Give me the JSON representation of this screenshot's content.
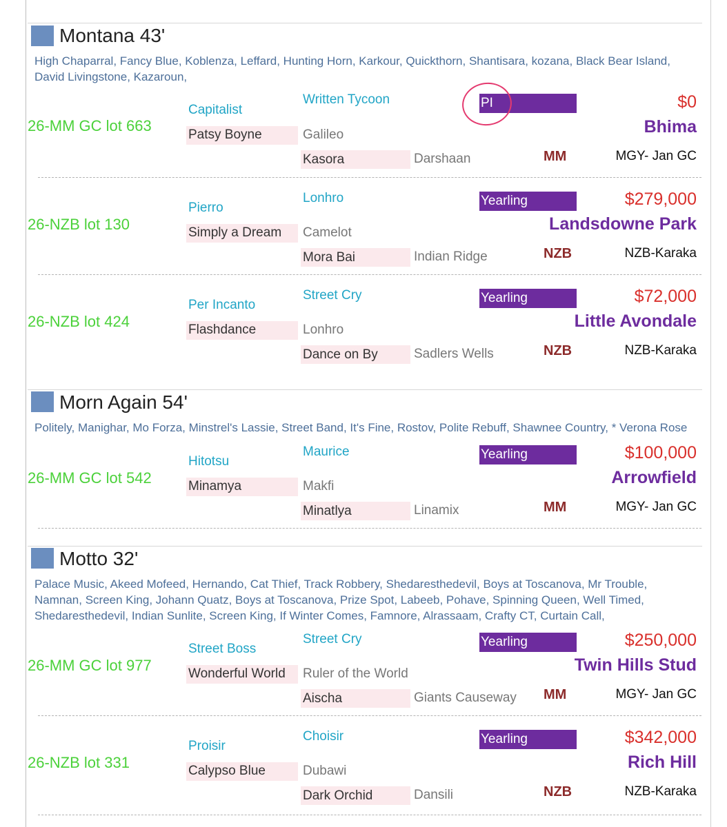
{
  "sections": [
    {
      "title": "Montana 43'",
      "progeny": "High Chaparral, Fancy Blue, Koblenza, Leffard, Hunting Horn, Karkour, Quickthorn, Shantisara, kozana, Black Bear Island, David Livingstone, Kazaroun,",
      "entries": [
        {
          "lot": "26-MM GC lot 663",
          "sire": "Capitalist",
          "dam": "Patsy Boyne",
          "grandsire": "Written Tycoon",
          "damsire": "Galileo",
          "granddam": "Kasora",
          "ggsire": "Darshaan",
          "badge": "PI",
          "price": "$0",
          "buyer": "Bhima",
          "sale_code": "MM",
          "sale_name": "MGY- Jan GC"
        },
        {
          "lot": "26-NZB lot 130",
          "sire": "Pierro",
          "dam": "Simply a Dream",
          "grandsire": "Lonhro",
          "damsire": "Camelot",
          "granddam": "Mora Bai",
          "ggsire": "Indian Ridge",
          "badge": "Yearling",
          "price": "$279,000",
          "buyer": "Landsdowne Park",
          "sale_code": "NZB",
          "sale_name": "NZB-Karaka"
        },
        {
          "lot": "26-NZB lot 424",
          "sire": "Per Incanto",
          "dam": "Flashdance",
          "grandsire": "Street Cry",
          "damsire": "Lonhro",
          "granddam": "Dance on By",
          "ggsire": "Sadlers Wells",
          "badge": "Yearling",
          "price": "$72,000",
          "buyer": "Little Avondale",
          "sale_code": "NZB",
          "sale_name": "NZB-Karaka"
        }
      ]
    },
    {
      "title": "Morn Again 54'",
      "progeny": "Politely, Manighar, Mo Forza, Minstrel's Lassie, Street Band, It's Fine, Rostov, Polite Rebuff, Shawnee Country, * Verona Rose",
      "entries": [
        {
          "lot": "26-MM GC lot 542",
          "sire": "Hitotsu",
          "dam": "Minamya",
          "grandsire": "Maurice",
          "damsire": "Makfi",
          "granddam": "Minatlya",
          "ggsire": "Linamix",
          "badge": "Yearling",
          "price": "$100,000",
          "buyer": "Arrowfield",
          "sale_code": "MM",
          "sale_name": "MGY- Jan GC"
        }
      ]
    },
    {
      "title": "Motto 32'",
      "progeny": "Palace Music, Akeed Mofeed, Hernando, Cat Thief, Track Robbery, Shedaresthedevil, Boys at Toscanova, Mr Trouble, Namnan, Screen King, Johann Quatz, Boys at Toscanova, Prize Spot, Labeeb, Pohave, Spinning Queen, Well Timed, Shedaresthedevil, Indian Sunlite, Screen King, If Winter Comes, Famnore, Alrassaam, Crafty CT, Curtain Call,",
      "entries": [
        {
          "lot": "26-MM GC lot 977",
          "sire": "Street Boss",
          "dam": "Wonderful World",
          "grandsire": "Street Cry",
          "damsire": "Ruler of the World",
          "granddam": "Aischa",
          "ggsire": "Giants Causeway",
          "badge": "Yearling",
          "price": "$250,000",
          "buyer": "Twin Hills Stud",
          "sale_code": "MM",
          "sale_name": "MGY- Jan GC"
        },
        {
          "lot": "26-NZB lot 331",
          "sire": "Proisir",
          "dam": "Calypso Blue",
          "grandsire": "Choisir",
          "damsire": "Dubawi",
          "granddam": "Dark Orchid",
          "ggsire": "Dansili",
          "badge": "Yearling",
          "price": "$342,000",
          "buyer": "Rich Hill",
          "sale_code": "NZB",
          "sale_name": "NZB-Karaka"
        }
      ]
    }
  ]
}
